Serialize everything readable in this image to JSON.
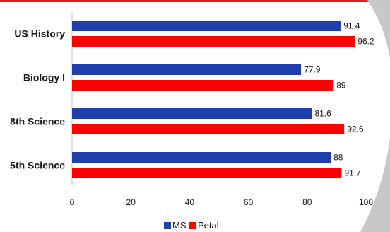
{
  "chart_data": {
    "type": "bar",
    "orientation": "horizontal",
    "categories": [
      "US History",
      "Biology I",
      "8th Science",
      "5th Science"
    ],
    "series": [
      {
        "name": "MS",
        "values": [
          91.4,
          77.9,
          81.6,
          88
        ],
        "color": "#1f3faa"
      },
      {
        "name": "Petal",
        "values": [
          96.2,
          89,
          92.6,
          91.7
        ],
        "color": "#ff0000"
      }
    ],
    "xlim": [
      0,
      100
    ],
    "xticks": [
      "0",
      "20",
      "40",
      "60",
      "80",
      "100"
    ],
    "grid": false,
    "legend": "bottom",
    "title": "",
    "xlabel": "",
    "ylabel": ""
  },
  "decor": {
    "top_rule_color": "#e0201b",
    "swoosh_color": "#c8c8c8"
  }
}
